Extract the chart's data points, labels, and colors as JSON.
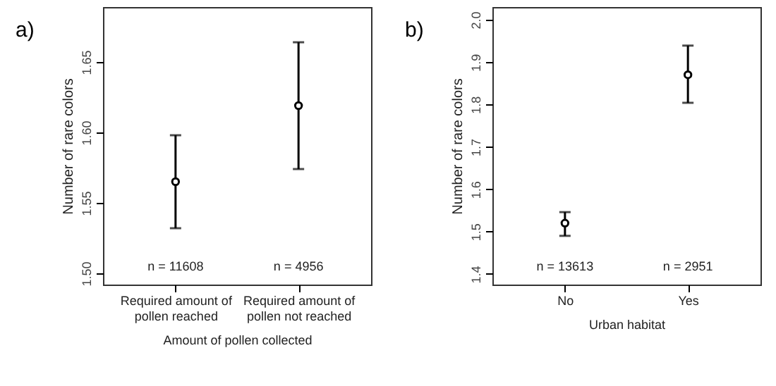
{
  "chart_data": [
    {
      "type": "scatter",
      "title": "a)",
      "xlabel": "Amount of pollen collected",
      "ylabel": "Number of rare colors",
      "categories": [
        "Required amount of pollen reached",
        "Required amount of pollen not reached"
      ],
      "values": [
        1.565,
        1.619
      ],
      "errors": [
        [
          1.532,
          1.598
        ],
        [
          1.574,
          1.664
        ]
      ],
      "color": "#000000",
      "marker": "circle",
      "ylim": [
        1.492,
        1.689
      ],
      "yticks": [
        {
          "value": 1.5,
          "label": "1.50"
        },
        {
          "value": 1.55,
          "label": "1.55"
        },
        {
          "value": 1.6,
          "label": "1.60"
        },
        {
          "value": 1.65,
          "label": "1.65"
        }
      ],
      "grid": false,
      "annotations": [
        "n = 11608",
        "n = 4956"
      ]
    },
    {
      "type": "scatter",
      "title": "b)",
      "xlabel": "Urban habitat",
      "ylabel": "Number of rare colors",
      "categories": [
        "No",
        "Yes"
      ],
      "values": [
        1.52,
        1.87
      ],
      "errors": [
        [
          1.49,
          1.546
        ],
        [
          1.804,
          1.939
        ]
      ],
      "color": "#000000",
      "marker": "circle",
      "ylim": [
        1.375,
        2.03
      ],
      "yticks": [
        {
          "value": 1.4,
          "label": "1.4"
        },
        {
          "value": 1.5,
          "label": "1.5"
        },
        {
          "value": 1.6,
          "label": "1.6"
        },
        {
          "value": 1.7,
          "label": "1.7"
        },
        {
          "value": 1.8,
          "label": "1.8"
        },
        {
          "value": 1.9,
          "label": "1.9"
        },
        {
          "value": 2.0,
          "label": "2.0"
        }
      ],
      "grid": false,
      "annotations": [
        "n = 13613",
        "n = 2951"
      ]
    }
  ]
}
